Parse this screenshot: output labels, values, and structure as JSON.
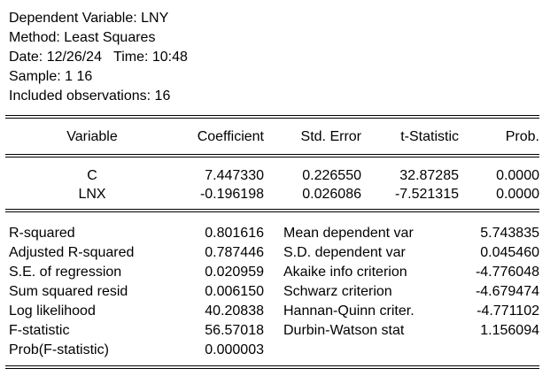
{
  "header": {
    "dependent_variable": "Dependent Variable: LNY",
    "method": "Method: Least Squares",
    "date_time": "Date: 12/26/24   Time: 10:48",
    "sample": "Sample: 1 16",
    "included_observations": "Included observations: 16"
  },
  "coef_table": {
    "columns": [
      "Variable",
      "Coefficient",
      "Std. Error",
      "t-Statistic",
      "Prob."
    ],
    "rows": [
      {
        "variable": "C",
        "coefficient": "7.447330",
        "std_error": "0.226550",
        "t_statistic": "32.87285",
        "prob": "0.0000"
      },
      {
        "variable": "LNX",
        "coefficient": "-0.196198",
        "std_error": "0.026086",
        "t_statistic": "-7.521315",
        "prob": "0.0000"
      }
    ]
  },
  "stats": {
    "left": [
      {
        "label": "R-squared",
        "value": "0.801616"
      },
      {
        "label": "Adjusted R-squared",
        "value": "0.787446"
      },
      {
        "label": "S.E. of regression",
        "value": "0.020959"
      },
      {
        "label": "Sum squared resid",
        "value": "0.006150"
      },
      {
        "label": "Log likelihood",
        "value": "40.20838"
      },
      {
        "label": "F-statistic",
        "value": "56.57018"
      },
      {
        "label": "Prob(F-statistic)",
        "value": "0.000003"
      }
    ],
    "right": [
      {
        "label": "Mean dependent var",
        "value": "5.743835"
      },
      {
        "label": "S.D. dependent var",
        "value": "0.045460"
      },
      {
        "label": "Akaike info criterion",
        "value": "-4.776048"
      },
      {
        "label": "Schwarz criterion",
        "value": "-4.679474"
      },
      {
        "label": "Hannan-Quinn criter.",
        "value": "-4.771102"
      },
      {
        "label": "Durbin-Watson stat",
        "value": "1.156094"
      }
    ]
  }
}
